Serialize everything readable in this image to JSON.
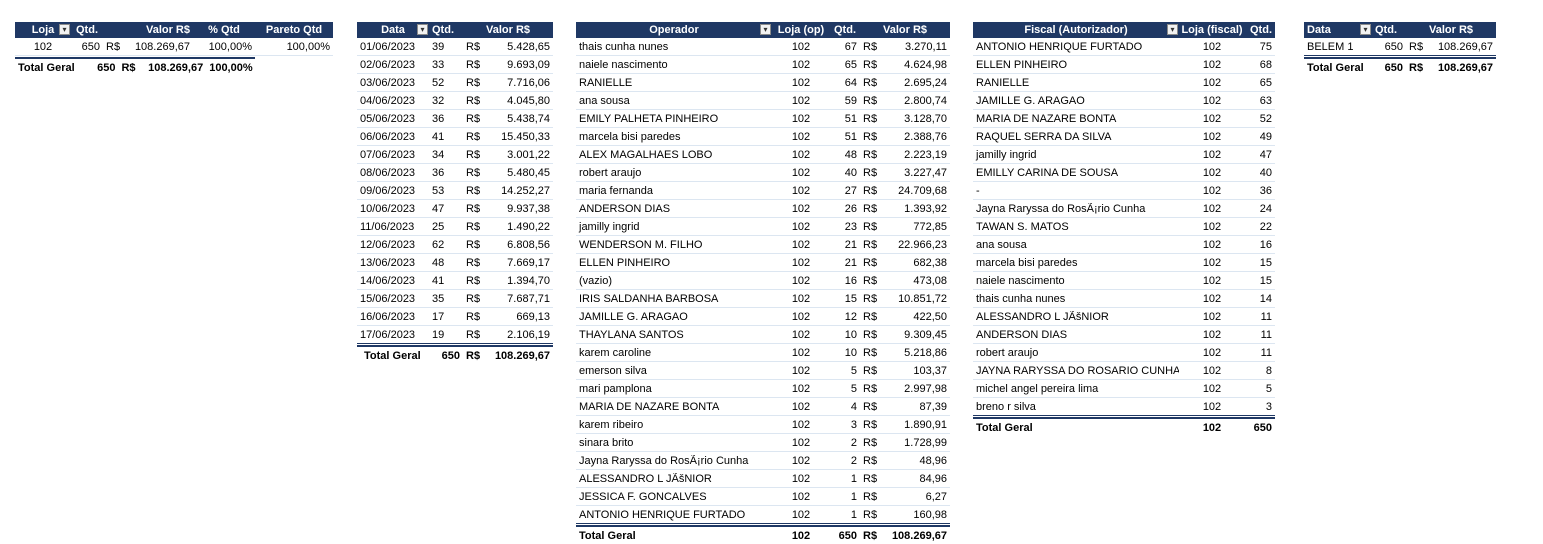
{
  "t1": {
    "headers": [
      "Loja",
      "Qtd.",
      "Valor R$",
      "% Qtd",
      "Pareto Qtd"
    ],
    "rows": [
      [
        "102",
        "650",
        "R$",
        "108.269,67",
        "100,00%",
        "100,00%"
      ]
    ],
    "total": [
      "Total Geral",
      "650",
      "R$",
      "108.269,67",
      "100,00%"
    ],
    "filter_icon": "filter-sort-icon"
  },
  "t2": {
    "headers": [
      "Data",
      "Qtd.",
      "Valor R$"
    ],
    "rows": [
      [
        "01/06/2023",
        "39",
        "R$",
        "5.428,65"
      ],
      [
        "02/06/2023",
        "33",
        "R$",
        "9.693,09"
      ],
      [
        "03/06/2023",
        "52",
        "R$",
        "7.716,06"
      ],
      [
        "04/06/2023",
        "32",
        "R$",
        "4.045,80"
      ],
      [
        "05/06/2023",
        "36",
        "R$",
        "5.438,74"
      ],
      [
        "06/06/2023",
        "41",
        "R$",
        "15.450,33"
      ],
      [
        "07/06/2023",
        "34",
        "R$",
        "3.001,22"
      ],
      [
        "08/06/2023",
        "36",
        "R$",
        "5.480,45"
      ],
      [
        "09/06/2023",
        "53",
        "R$",
        "14.252,27"
      ],
      [
        "10/06/2023",
        "47",
        "R$",
        "9.937,38"
      ],
      [
        "11/06/2023",
        "25",
        "R$",
        "1.490,22"
      ],
      [
        "12/06/2023",
        "62",
        "R$",
        "6.808,56"
      ],
      [
        "13/06/2023",
        "48",
        "R$",
        "7.669,17"
      ],
      [
        "14/06/2023",
        "41",
        "R$",
        "1.394,70"
      ],
      [
        "15/06/2023",
        "35",
        "R$",
        "7.687,71"
      ],
      [
        "16/06/2023",
        "17",
        "R$",
        "669,13"
      ],
      [
        "17/06/2023",
        "19",
        "R$",
        "2.106,19"
      ]
    ],
    "total": [
      "Total Geral",
      "650",
      "R$",
      "108.269,67"
    ],
    "filter_icon": "sort-dropdown-icon"
  },
  "t3": {
    "headers": [
      "Operador",
      "Loja (op)",
      "Qtd.",
      "Valor R$"
    ],
    "rows": [
      [
        "thais cunha nunes",
        "102",
        "67",
        "R$",
        "3.270,11"
      ],
      [
        "naiele nascimento",
        "102",
        "65",
        "R$",
        "4.624,98"
      ],
      [
        "RANIELLE",
        "102",
        "64",
        "R$",
        "2.695,24"
      ],
      [
        "ana sousa",
        "102",
        "59",
        "R$",
        "2.800,74"
      ],
      [
        "EMILY PALHETA PINHEIRO",
        "102",
        "51",
        "R$",
        "3.128,70"
      ],
      [
        "marcela bisi paredes",
        "102",
        "51",
        "R$",
        "2.388,76"
      ],
      [
        "ALEX  MAGALHAES LOBO",
        "102",
        "48",
        "R$",
        "2.223,19"
      ],
      [
        "robert araujo",
        "102",
        "40",
        "R$",
        "3.227,47"
      ],
      [
        "maria fernanda",
        "102",
        "27",
        "R$",
        "24.709,68"
      ],
      [
        "ANDERSON  DIAS",
        "102",
        "26",
        "R$",
        "1.393,92"
      ],
      [
        "jamilly ingrid",
        "102",
        "23",
        "R$",
        "772,85"
      ],
      [
        "WENDERSON M. FILHO",
        "102",
        "21",
        "R$",
        "22.966,23"
      ],
      [
        "ELLEN PINHEIRO",
        "102",
        "21",
        "R$",
        "682,38"
      ],
      [
        "(vazio)",
        "102",
        "16",
        "R$",
        "473,08"
      ],
      [
        "IRIS SALDANHA BARBOSA",
        "102",
        "15",
        "R$",
        "10.851,72"
      ],
      [
        "JAMILLE G. ARAGAO",
        "102",
        "12",
        "R$",
        "422,50"
      ],
      [
        "THAYLANA  SANTOS",
        "102",
        "10",
        "R$",
        "9.309,45"
      ],
      [
        "karem caroline",
        "102",
        "10",
        "R$",
        "5.218,86"
      ],
      [
        "emerson silva",
        "102",
        "5",
        "R$",
        "103,37"
      ],
      [
        "mari pamplona",
        "102",
        "5",
        "R$",
        "2.997,98"
      ],
      [
        "MARIA  DE NAZARE BONTA",
        "102",
        "4",
        "R$",
        "87,39"
      ],
      [
        "karem ribeiro",
        "102",
        "3",
        "R$",
        "1.890,91"
      ],
      [
        "sinara brito",
        "102",
        "2",
        "R$",
        "1.728,99"
      ],
      [
        "Jayna Raryssa do RosÃ¡rio Cunha",
        "102",
        "2",
        "R$",
        "48,96"
      ],
      [
        "ALESSANDRO L JÃšNIOR",
        "102",
        "1",
        "R$",
        "84,96"
      ],
      [
        "JESSICA F. GONCALVES",
        "102",
        "1",
        "R$",
        "6,27"
      ],
      [
        "ANTONIO HENRIQUE FURTADO",
        "102",
        "1",
        "R$",
        "160,98"
      ]
    ],
    "total": [
      "Total Geral",
      "102",
      "650",
      "R$",
      "108.269,67"
    ],
    "filter_icon": "sort-dropdown-icon"
  },
  "t4": {
    "headers": [
      "Fiscal (Autorizador)",
      "Loja (fiscal)",
      "Qtd."
    ],
    "rows": [
      [
        "ANTONIO HENRIQUE FURTADO",
        "102",
        "75"
      ],
      [
        "ELLEN PINHEIRO",
        "102",
        "68"
      ],
      [
        "RANIELLE",
        "102",
        "65"
      ],
      [
        "JAMILLE G. ARAGAO",
        "102",
        "63"
      ],
      [
        "MARIA  DE NAZARE BONTA",
        "102",
        "52"
      ],
      [
        "RAQUEL SERRA DA SILVA",
        "102",
        "49"
      ],
      [
        "jamilly ingrid",
        "102",
        "47"
      ],
      [
        "EMILLY CARINA DE SOUSA",
        "102",
        "40"
      ],
      [
        "-",
        "102",
        "36"
      ],
      [
        "Jayna Raryssa do RosÃ¡rio Cunha",
        "102",
        "24"
      ],
      [
        "TAWAN S. MATOS",
        "102",
        "22"
      ],
      [
        "ana sousa",
        "102",
        "16"
      ],
      [
        "marcela bisi paredes",
        "102",
        "15"
      ],
      [
        "naiele nascimento",
        "102",
        "15"
      ],
      [
        "thais cunha nunes",
        "102",
        "14"
      ],
      [
        "ALESSANDRO L JÃšNIOR",
        "102",
        "11"
      ],
      [
        "ANDERSON  DIAS",
        "102",
        "11"
      ],
      [
        "robert araujo",
        "102",
        "11"
      ],
      [
        "JAYNA RARYSSA DO ROSARIO CUNHA",
        "102",
        "8"
      ],
      [
        "michel angel pereira lima",
        "102",
        "5"
      ],
      [
        "breno r silva",
        "102",
        "3"
      ]
    ],
    "total": [
      "Total Geral",
      "102",
      "650"
    ],
    "filter_icon": "sort-dropdown-icon"
  },
  "t5": {
    "headers": [
      "Data",
      "Qtd.",
      "Valor R$"
    ],
    "rows": [
      [
        "BELEM 1",
        "650",
        "R$",
        "108.269,67"
      ]
    ],
    "total": [
      "Total Geral",
      "650",
      "R$",
      "108.269,67"
    ],
    "filter_icon": "dropdown-icon"
  }
}
